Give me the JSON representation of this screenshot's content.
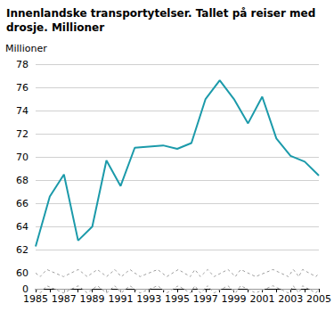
{
  "chart_data": {
    "type": "line",
    "title": "Innenlandske transportytelser. Tallet på reiser med drosje. Millioner",
    "y_label": "Millioner",
    "categories": [
      "1985",
      null,
      "1987",
      null,
      "1989",
      null,
      "1991",
      null,
      "1993",
      null,
      "1995",
      null,
      "1997",
      null,
      "1999",
      null,
      "2001",
      null,
      "2003",
      null,
      "2005"
    ],
    "values": [
      62.3,
      66.6,
      68.5,
      62.8,
      64.0,
      69.7,
      67.5,
      70.8,
      70.9,
      71.0,
      70.7,
      71.2,
      75.0,
      76.6,
      75.0,
      72.9,
      75.2,
      71.6,
      70.1,
      69.6,
      68.4
    ],
    "color": "#1b9aaa",
    "ylim": [
      0,
      78
    ],
    "yticks": [
      0,
      60,
      62,
      64,
      66,
      68,
      70,
      72,
      74,
      76,
      78
    ],
    "grid": true
  }
}
